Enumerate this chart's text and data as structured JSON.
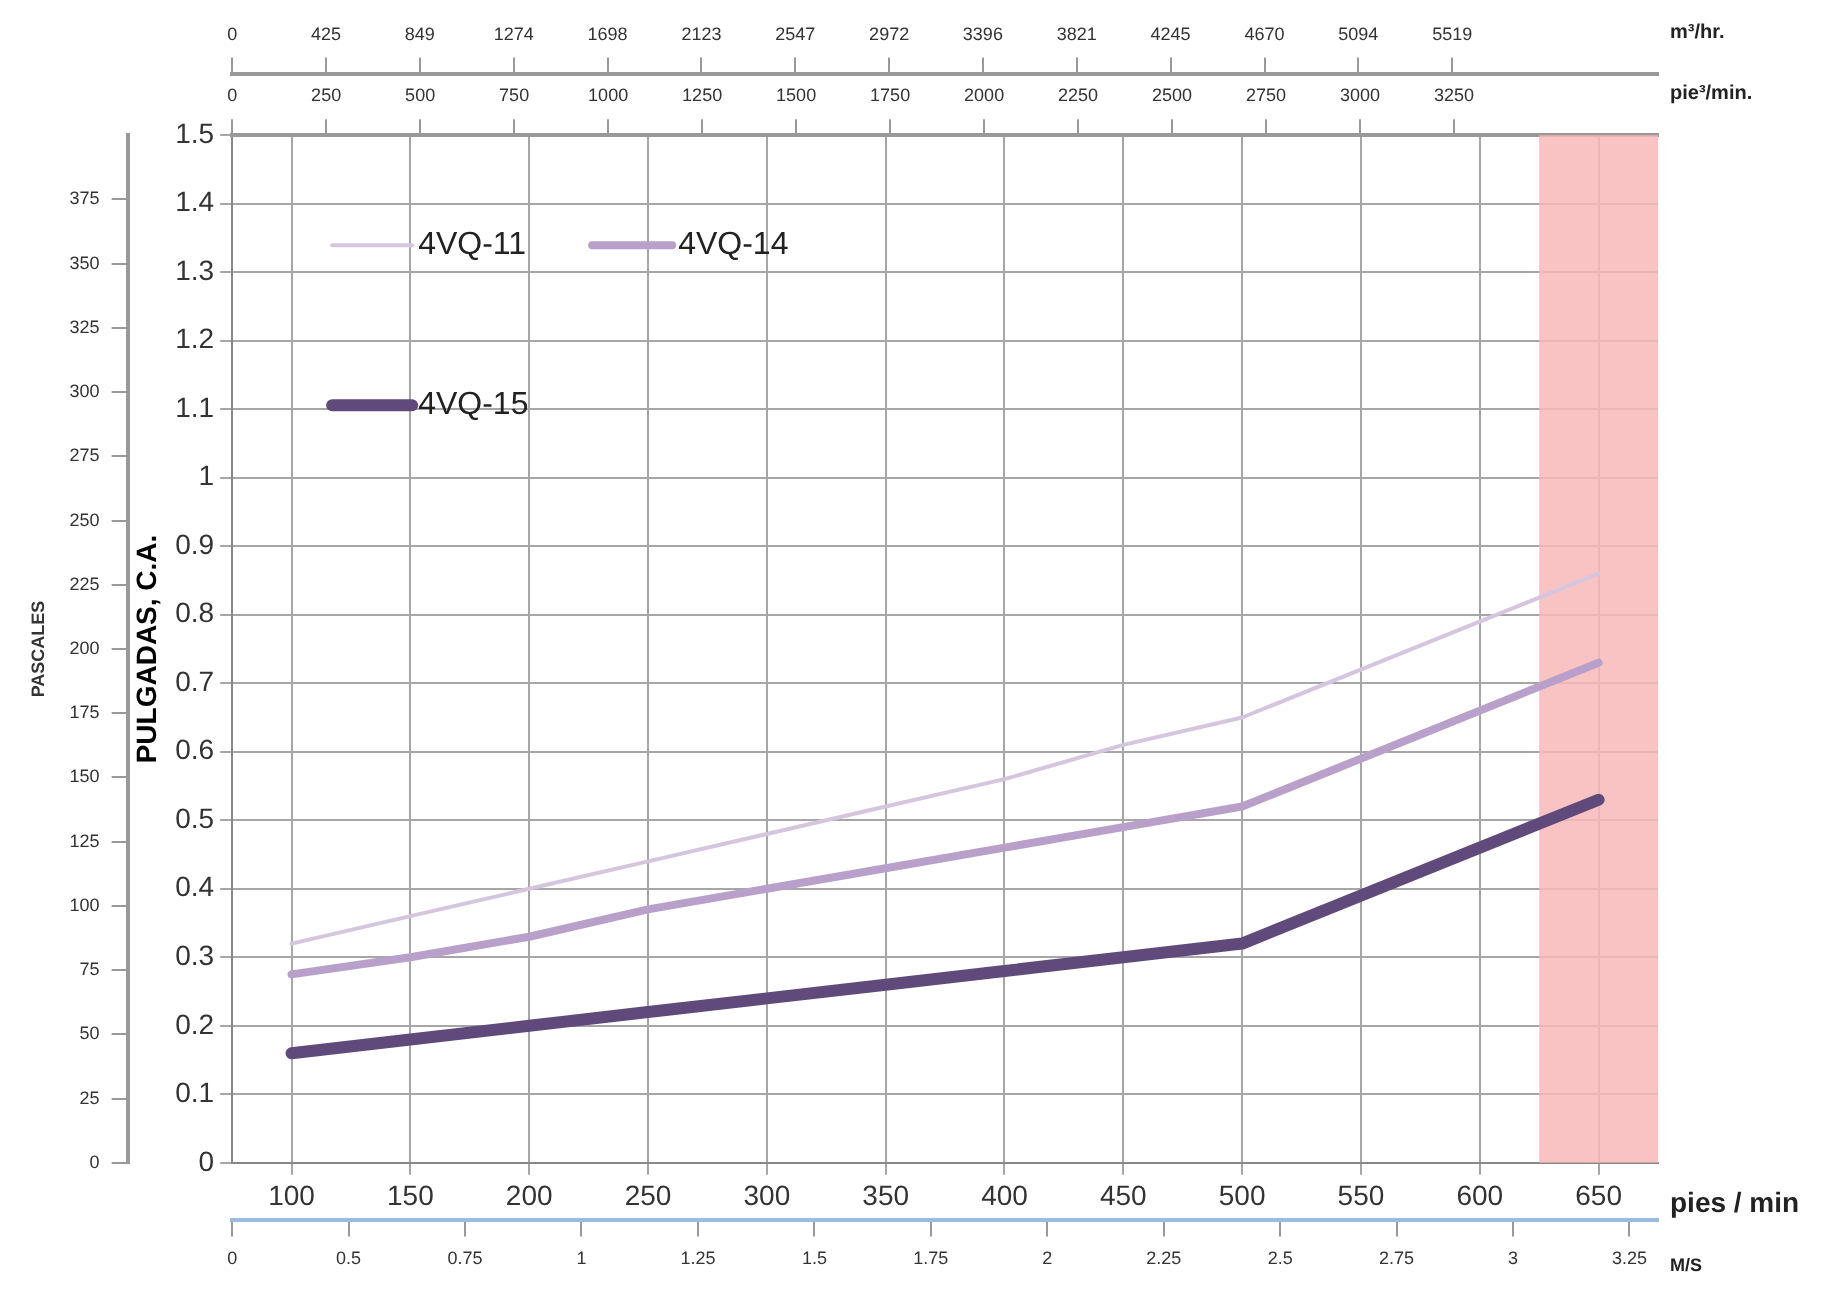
{
  "chart_data": {
    "type": "line",
    "xlabel": "pies / min",
    "ylabel": "PULGADAS, C.A.",
    "y3label": "PASCALES",
    "x2label": "m³/hr.",
    "annotations": [
      "pie³/min.",
      "0",
      "250",
      "500",
      "750",
      "1000",
      "1250",
      "1500",
      "1750",
      "2000",
      "2250",
      "2500",
      "2750",
      "3000",
      "3250",
      "M/S",
      "0",
      "0.5",
      "0.75",
      "1",
      "1.25",
      "1.5",
      "1.75",
      "2",
      "2.25",
      "2.5",
      "2.75",
      "3",
      "3.25"
    ],
    "x": [
      100,
      150,
      200,
      250,
      300,
      350,
      400,
      450,
      500,
      550,
      600,
      650
    ],
    "series": [
      {
        "name": "4VQ-11",
        "color": "#d5c5df",
        "values": [
          0.32,
          0.36,
          0.4,
          0.44,
          0.48,
          0.52,
          0.56,
          0.61,
          0.65,
          null,
          null,
          0.86
        ]
      },
      {
        "name": "4VQ-14",
        "color": "#b9a0cb",
        "values": [
          0.275,
          0.3,
          0.33,
          0.37,
          0.4,
          0.43,
          0.46,
          0.49,
          0.52,
          null,
          null,
          0.73
        ]
      },
      {
        "name": "4VQ-15",
        "color": "#604a7b",
        "values": [
          0.16,
          0.18,
          0.2,
          0.22,
          0.24,
          0.26,
          0.28,
          0.3,
          0.32,
          null,
          null,
          0.53
        ]
      }
    ],
    "xlim": [
      75,
      675
    ],
    "xticks": [
      100,
      150,
      200,
      250,
      300,
      350,
      400,
      450,
      500,
      550,
      600,
      650
    ],
    "ylim": [
      0,
      1.5
    ],
    "yticks": [
      0,
      0.1,
      0.2,
      0.3,
      0.4,
      0.5,
      0.6,
      0.7,
      0.8,
      0.9,
      1,
      1.1,
      1.2,
      1.3,
      1.4,
      1.5
    ],
    "y3lim": [
      0,
      400
    ],
    "y3ticks": [
      0,
      25,
      50,
      75,
      100,
      125,
      150,
      175,
      200,
      225,
      250,
      275,
      300,
      325,
      350,
      375
    ],
    "x2lim": [
      0,
      6450
    ],
    "x2ticks": [
      0,
      425,
      849,
      1274,
      1698,
      2123,
      2547,
      2972,
      3396,
      3821,
      4245,
      4670,
      5094,
      5519
    ],
    "bands": [
      {
        "axis": "x",
        "from": 625,
        "to": 675,
        "color": "#f9b8b8"
      }
    ],
    "grid": true,
    "legend": "top left",
    "marker": "none",
    "line_style": "solid"
  }
}
